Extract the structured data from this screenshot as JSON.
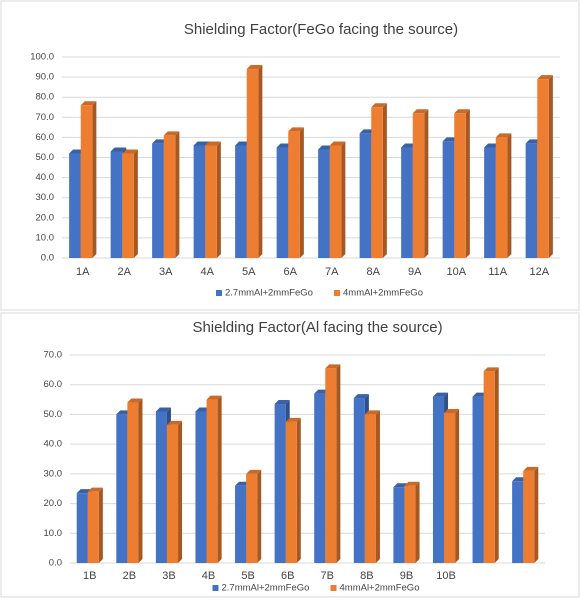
{
  "chart_data": [
    {
      "type": "bar",
      "title": "Shielding Factor(FeGo facing the source)",
      "categories": [
        "1A",
        "2A",
        "3A",
        "4A",
        "5A",
        "6A",
        "7A",
        "8A",
        "9A",
        "10A",
        "11A",
        "12A"
      ],
      "series": [
        {
          "name": "2.7mmAl+2mmFeGo",
          "color": "#4472c4",
          "values": [
            52,
            53,
            57,
            56,
            56,
            55,
            54,
            62,
            55,
            58,
            55,
            57
          ]
        },
        {
          "name": "4mmAl+2mmFeGo",
          "color": "#ed7d31",
          "values": [
            76,
            52,
            61,
            56,
            94,
            63,
            56,
            75,
            72,
            72,
            60,
            89
          ]
        }
      ],
      "ylim": [
        0,
        100
      ],
      "yticks": [
        {
          "value": 0,
          "label": "0.0"
        },
        {
          "value": 10,
          "label": "10.0"
        },
        {
          "value": 20,
          "label": "20.0"
        },
        {
          "value": 30,
          "label": "30.0"
        },
        {
          "value": 40,
          "label": "40.0"
        },
        {
          "value": 50,
          "label": "50.0"
        },
        {
          "value": 60,
          "label": "60.0"
        },
        {
          "value": 70,
          "label": "70.0"
        },
        {
          "value": 80,
          "label": "80.0"
        },
        {
          "value": 90,
          "label": "90.0"
        },
        {
          "value": 100,
          "label": "100.0"
        }
      ],
      "grid": true,
      "legend": "bottom"
    },
    {
      "type": "bar",
      "title": "Shielding Factor(Al facing the source)",
      "categories": [
        "1B",
        "2B",
        "3B",
        "4B",
        "5B",
        "6B",
        "7B",
        "8B",
        "9B",
        "10B",
        null,
        null
      ],
      "series": [
        {
          "name": "2.7mmAl+2mmFeGo",
          "color": "#4472c4",
          "values": [
            23.5,
            50,
            51,
            51,
            26,
            53.5,
            57,
            55.5,
            25.5,
            56,
            56,
            27.5
          ]
        },
        {
          "name": "4mmAl+2mmFeGo",
          "color": "#ed7d31",
          "values": [
            24,
            54,
            46.5,
            55,
            30,
            47.5,
            65.5,
            50,
            26,
            50.5,
            64.5,
            31
          ]
        }
      ],
      "ylim": [
        0,
        70
      ],
      "yticks": [
        {
          "value": 0,
          "label": "0.0"
        },
        {
          "value": 10,
          "label": "10.0"
        },
        {
          "value": 20,
          "label": "20.0"
        },
        {
          "value": 30,
          "label": "30.0"
        },
        {
          "value": 40,
          "label": "40.0"
        },
        {
          "value": 50,
          "label": "50.0"
        },
        {
          "value": 60,
          "label": "60.0"
        },
        {
          "value": 70,
          "label": "70.0"
        }
      ],
      "grid": true,
      "legend": "bottom"
    }
  ]
}
